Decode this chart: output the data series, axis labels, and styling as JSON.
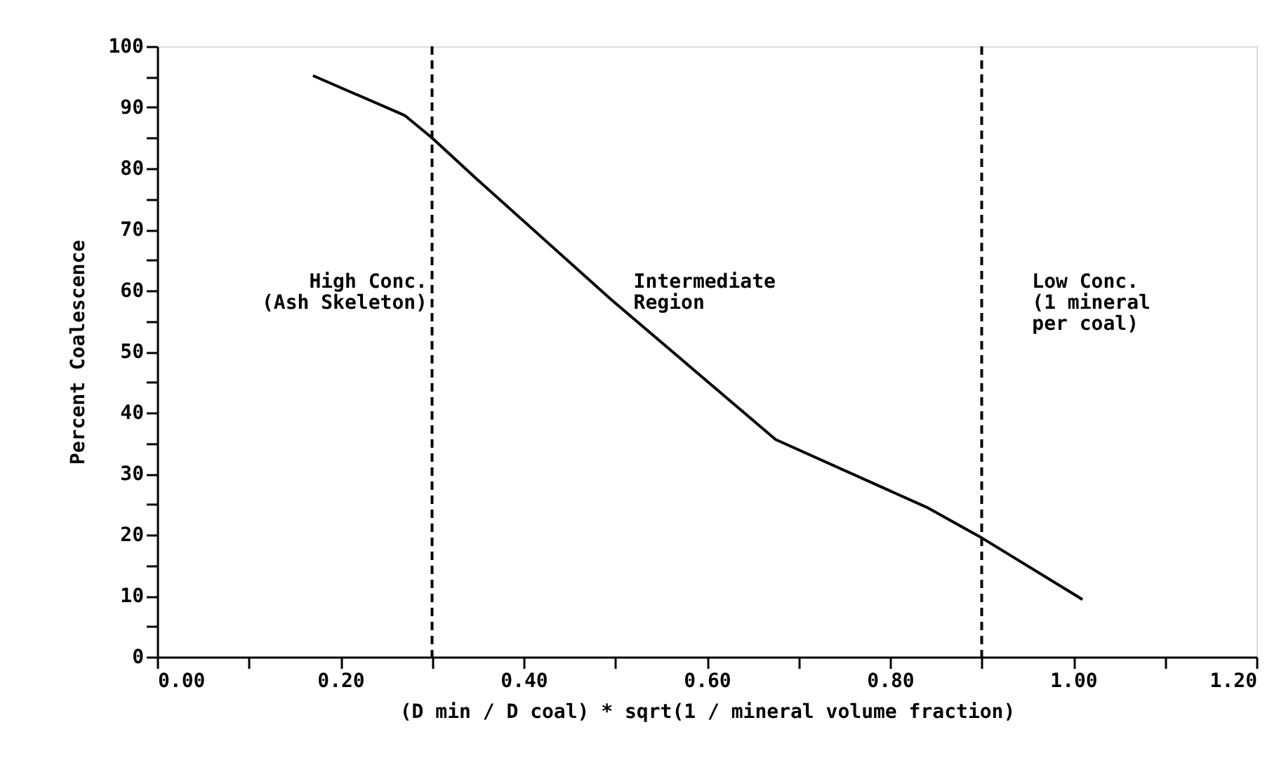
{
  "chart_data": {
    "type": "line",
    "xlabel": "(D min / D coal) * sqrt(1 / mineral volume fraction)",
    "ylabel": "Percent Coalescence",
    "x": [
      0.17,
      0.27,
      0.3,
      0.347,
      0.495,
      0.675,
      0.84,
      0.9,
      1.01
    ],
    "series": [
      {
        "color": "#000000",
        "values": [
          95.2,
          88.7,
          85,
          78.5,
          58.6,
          35.6,
          24.5,
          19.5,
          9.4
        ]
      }
    ],
    "xlim": [
      0,
      1.2
    ],
    "xticks": [
      {
        "value": 0,
        "label": "0.00"
      },
      {
        "value": 0.1,
        "label": null
      },
      {
        "value": 0.2,
        "label": "0.20"
      },
      {
        "value": 0.3,
        "label": null
      },
      {
        "value": 0.4,
        "label": "0.40"
      },
      {
        "value": 0.5,
        "label": null
      },
      {
        "value": 0.6,
        "label": "0.60"
      },
      {
        "value": 0.7,
        "label": null
      },
      {
        "value": 0.8,
        "label": "0.80"
      },
      {
        "value": 0.9,
        "label": null
      },
      {
        "value": 1.0,
        "label": "1.00"
      },
      {
        "value": 1.1,
        "label": null
      },
      {
        "value": 1.2,
        "label": "1.20"
      }
    ],
    "ylim": [
      0,
      100
    ],
    "yticks": [
      0,
      {
        "value": 5,
        "label": null
      },
      10,
      {
        "value": 15,
        "label": null
      },
      20,
      {
        "value": 25,
        "label": null
      },
      30,
      {
        "value": 35,
        "label": null
      },
      40,
      {
        "value": 45,
        "label": null
      },
      50,
      {
        "value": 55,
        "label": null
      },
      60,
      {
        "value": 65,
        "label": null
      },
      70,
      {
        "value": 75,
        "label": null
      },
      80,
      {
        "value": 85,
        "label": null
      },
      90,
      {
        "value": 95,
        "label": null
      },
      100
    ],
    "ref_lines": [
      {
        "axis": "x",
        "value": 0.3,
        "color": "#000000",
        "line_style": "dashed"
      },
      {
        "axis": "x",
        "value": 0.9,
        "color": "#000000",
        "line_style": "dashed"
      }
    ],
    "annotations": [
      "High Conc.\n(Ash Skeleton)",
      "Intermediate\nRegion",
      "Low Conc.\n(1 mineral\nper coal)"
    ],
    "grid": false,
    "marker": "none",
    "line_style": "solid"
  }
}
